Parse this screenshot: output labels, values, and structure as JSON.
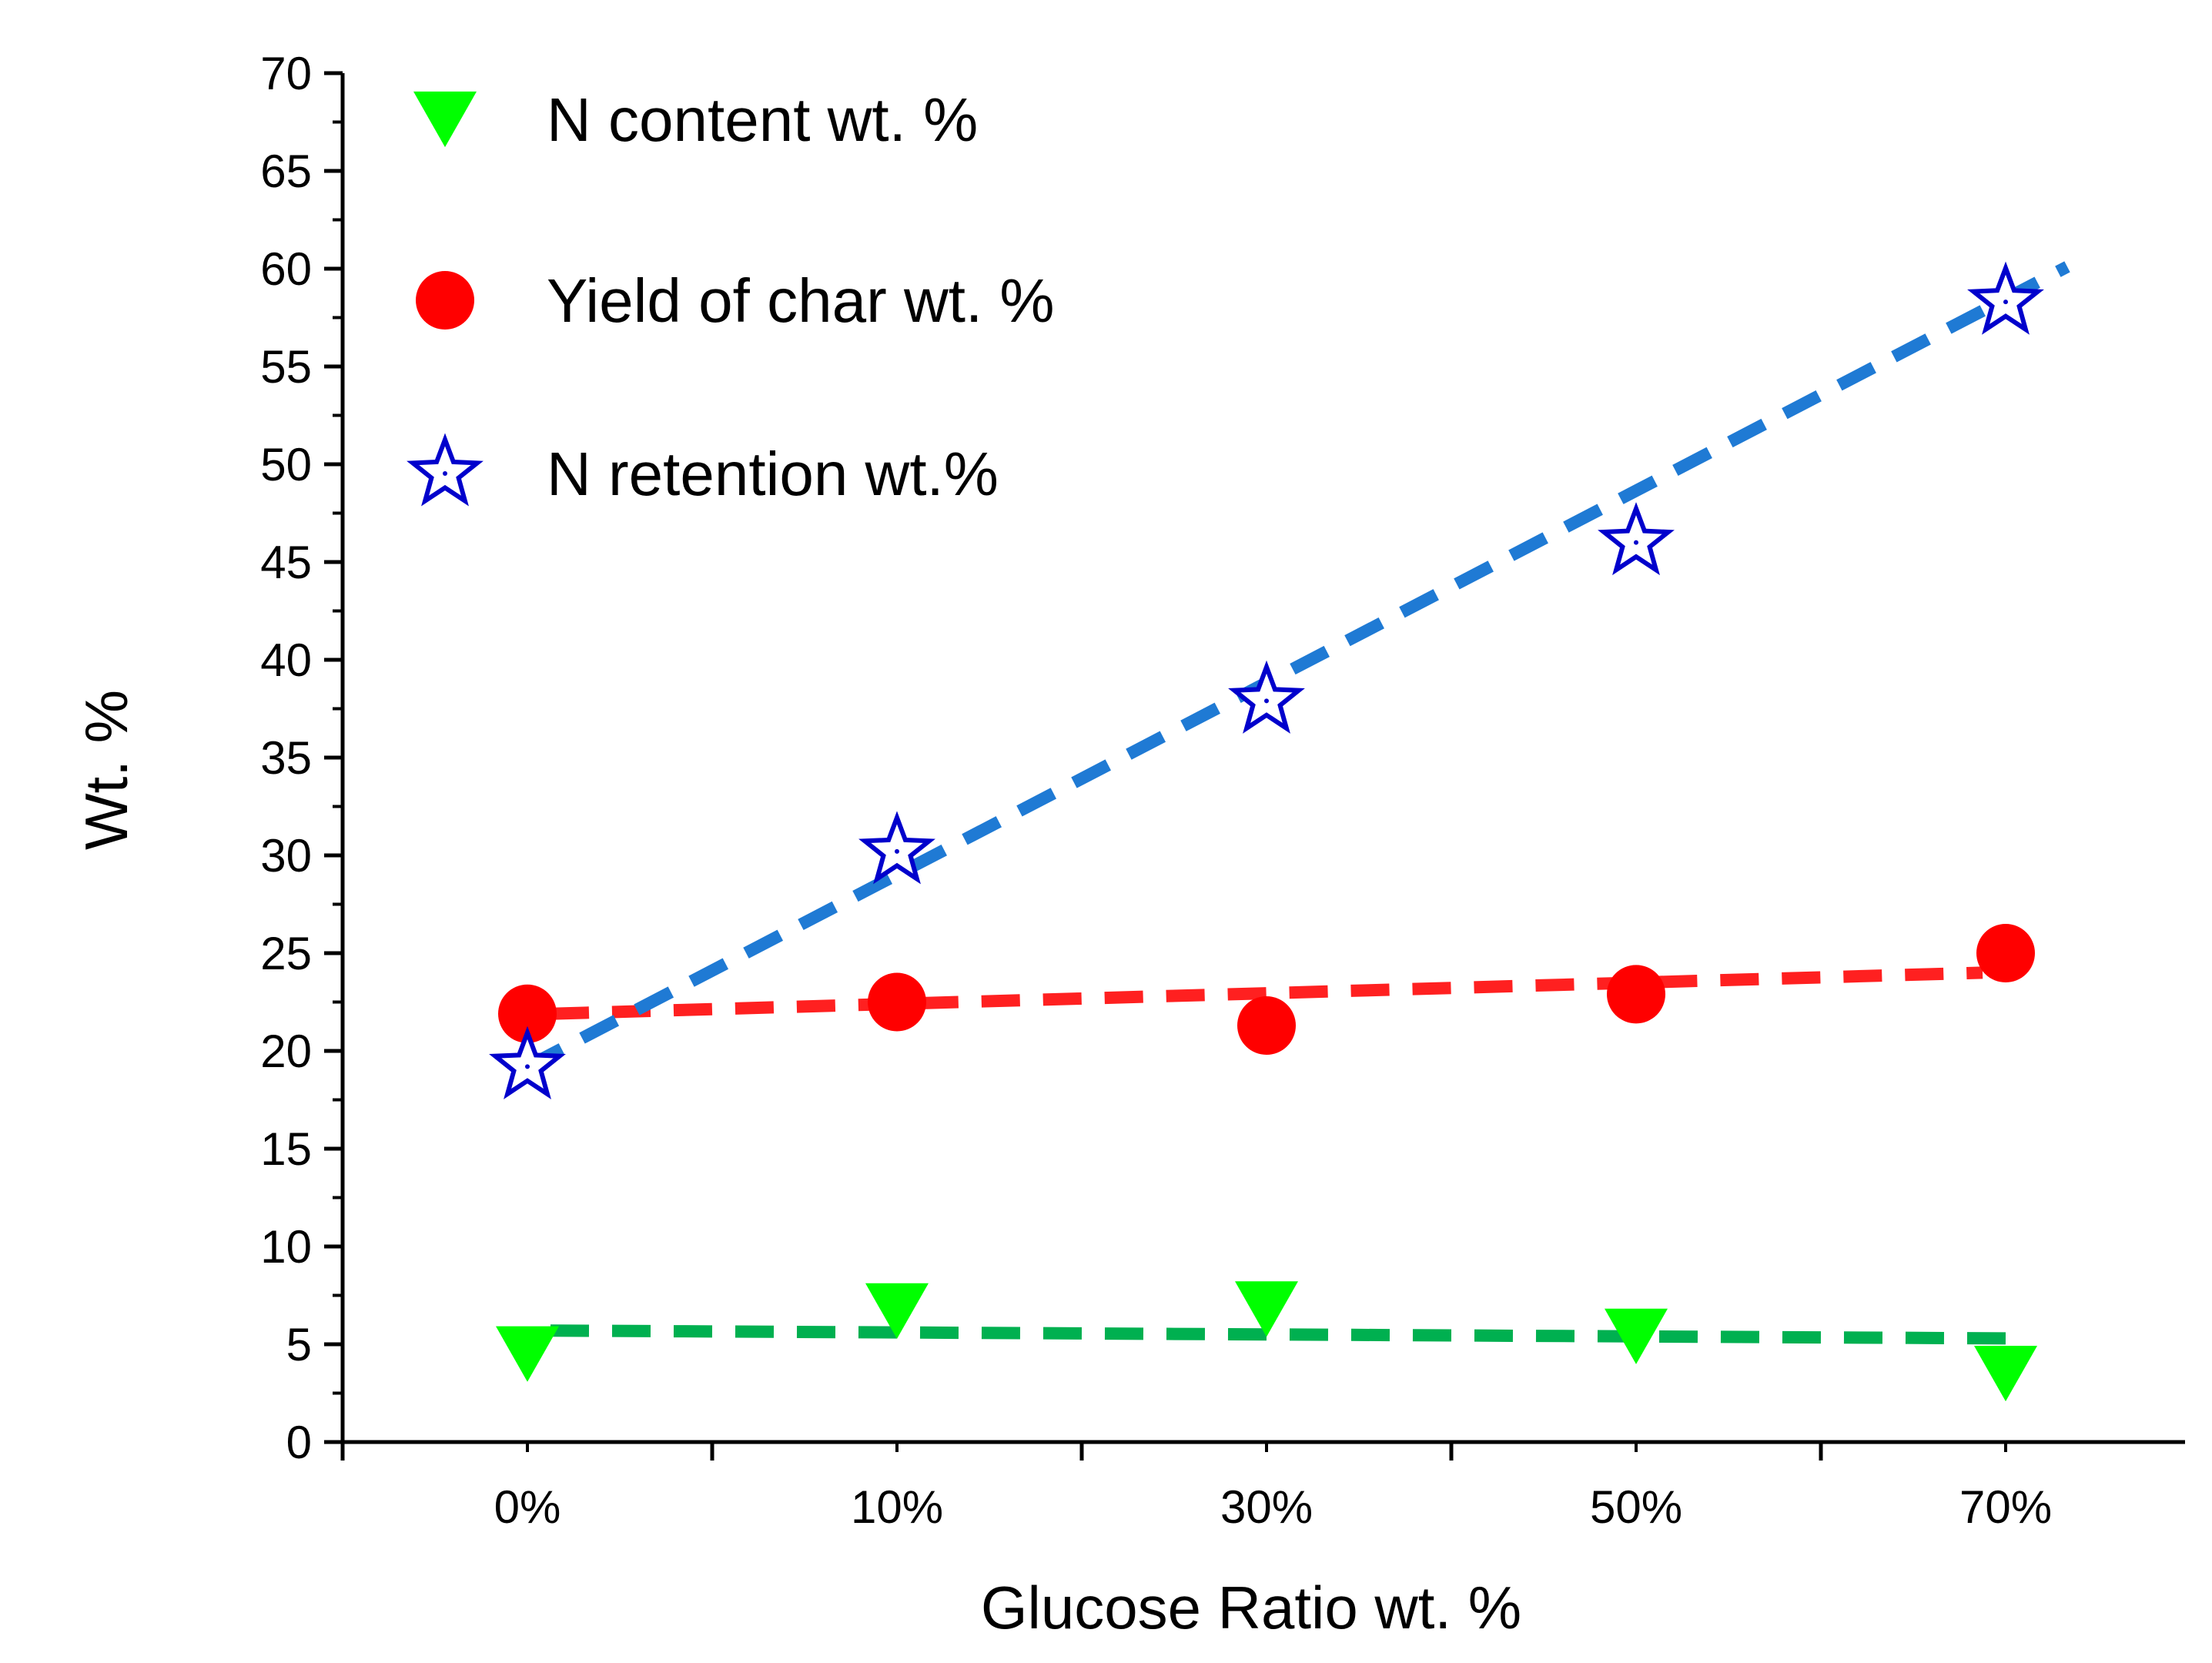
{
  "chart_data": {
    "type": "scatter",
    "title": "",
    "xlabel": "Glucose Ratio wt. %",
    "ylabel": "Wt.  %",
    "categories": [
      "0%",
      "10%",
      "30%",
      "50%",
      "70%"
    ],
    "ylim": [
      0,
      70
    ],
    "y_major_step": 5,
    "legend_position": "top-left",
    "series": [
      {
        "name": "N content wt. %",
        "marker": "triangle-down",
        "color": "#00ff00",
        "fit_color": "#00b050",
        "values": [
          4.5,
          6.7,
          6.8,
          5.4,
          3.5
        ],
        "fit": [
          5.7,
          5.3
        ]
      },
      {
        "name": "Yield of char wt. %",
        "marker": "circle",
        "color": "#ff0000",
        "fit_color": "#ff2020",
        "values": [
          21.9,
          22.5,
          21.3,
          22.9,
          25.0
        ],
        "fit": [
          21.9,
          24.0
        ]
      },
      {
        "name": "N retention wt.%",
        "marker": "star-open",
        "color": "#0000cc",
        "fit_color": "#1f7ad4",
        "values": [
          19.2,
          30.2,
          37.9,
          46.0,
          58.3
        ],
        "fit": [
          19.2,
          60.1
        ]
      }
    ]
  }
}
